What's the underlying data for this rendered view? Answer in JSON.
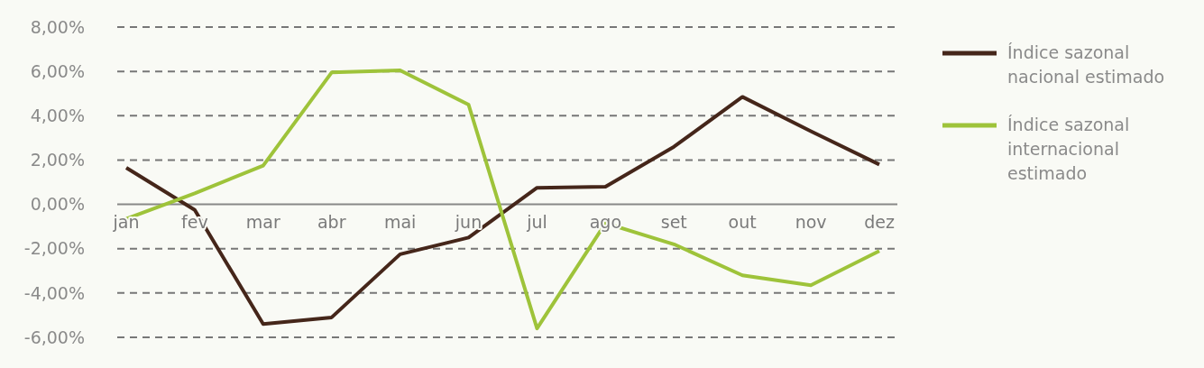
{
  "chart_data": {
    "type": "line",
    "categories": [
      "jan",
      "fev",
      "mar",
      "abr",
      "mai",
      "jun",
      "jul",
      "ago",
      "set",
      "out",
      "nov",
      "dez"
    ],
    "series": [
      {
        "name": "Índice sazonal nacional estimado",
        "color": "#45261a",
        "values": [
          1.65,
          -0.25,
          -5.4,
          -5.1,
          -2.25,
          -1.5,
          0.75,
          0.8,
          2.6,
          4.85,
          3.3,
          1.8
        ]
      },
      {
        "name": "Índice sazonal internacional estimado",
        "color": "#9ec33a",
        "values": [
          -0.65,
          0.5,
          1.75,
          5.95,
          6.05,
          4.5,
          -5.6,
          -0.85,
          -1.8,
          -3.2,
          -3.65,
          -2.1
        ]
      }
    ],
    "ylim": [
      -6,
      8
    ],
    "yticks": [
      {
        "value": -6,
        "label": "-6,00%"
      },
      {
        "value": -4,
        "label": "-4,00%"
      },
      {
        "value": -2,
        "label": "-2,00%"
      },
      {
        "value": 0,
        "label": "0,00%"
      },
      {
        "value": 2,
        "label": "2,00%"
      },
      {
        "value": 4,
        "label": "4,00%"
      },
      {
        "value": 6,
        "label": "6,00%"
      },
      {
        "value": 8,
        "label": "8,00%"
      }
    ],
    "grid": "y",
    "legend": "right",
    "line_style": "solid"
  }
}
